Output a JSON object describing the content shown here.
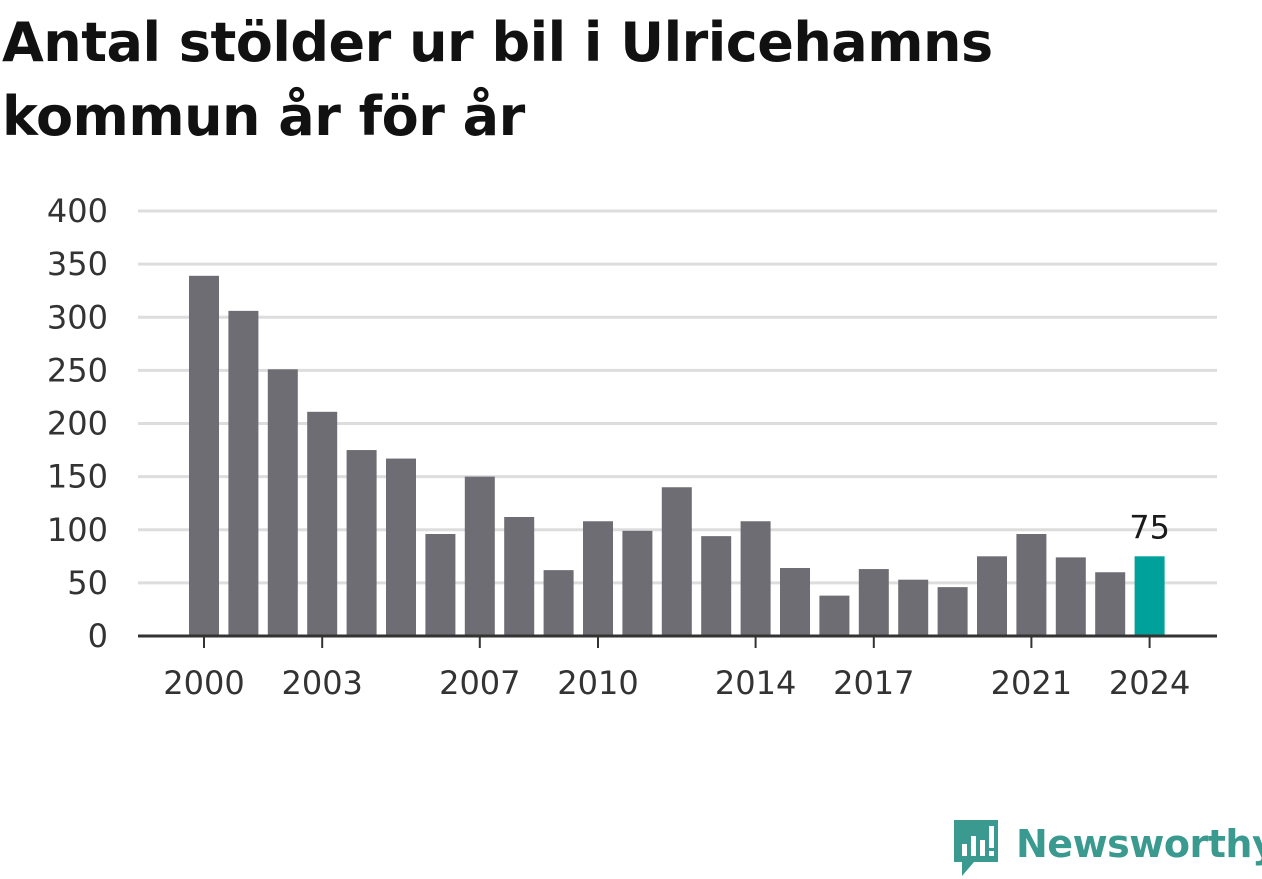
{
  "title": "Antal stölder ur bil i Ulricehamns kommun år för år",
  "brand": {
    "name": "Newsworthy",
    "icon": "newsworthy-logo-icon",
    "color": "#3a9a8f"
  },
  "colors": {
    "bar": "#6e6d73",
    "highlight": "#00a19a",
    "grid": "#dddddd",
    "axis": "#333333"
  },
  "chart_data": {
    "type": "bar",
    "categories": [
      "2000",
      "2001",
      "2002",
      "2003",
      "2004",
      "2005",
      "2006",
      "2007",
      "2008",
      "2009",
      "2010",
      "2011",
      "2012",
      "2013",
      "2014",
      "2015",
      "2016",
      "2017",
      "2018",
      "2019",
      "2020",
      "2021",
      "2022",
      "2023",
      "2024"
    ],
    "values": [
      339,
      306,
      251,
      211,
      175,
      167,
      96,
      150,
      112,
      62,
      108,
      99,
      140,
      94,
      108,
      64,
      38,
      63,
      53,
      46,
      75,
      96,
      74,
      60,
      75
    ],
    "xtick_labels": [
      "2000",
      "2003",
      "2007",
      "2010",
      "2014",
      "2017",
      "2021",
      "2024"
    ],
    "yticks": [
      0,
      50,
      100,
      150,
      200,
      250,
      300,
      350,
      400
    ],
    "ylim": [
      0,
      400
    ],
    "highlight": {
      "category": "2024",
      "label": "75"
    },
    "grid": true,
    "xlabel": "",
    "ylabel": ""
  }
}
